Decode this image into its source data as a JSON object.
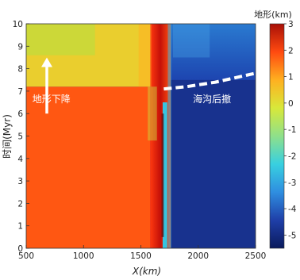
{
  "chart_data": {
    "type": "heatmap",
    "title": "",
    "xlabel": "X(km)",
    "ylabel": "时间(Myr)",
    "xlim": [
      500,
      2500
    ],
    "ylim": [
      0,
      10
    ],
    "xticks": [
      "500",
      "1000",
      "1500",
      "2000",
      "2500"
    ],
    "yticks": [
      "0",
      "1",
      "2",
      "3",
      "4",
      "5",
      "6",
      "7",
      "8",
      "9",
      "10"
    ],
    "colorbar": {
      "label": "地形(km)",
      "range": [
        -5.5,
        3
      ],
      "ticks": [
        "3",
        "2",
        "1",
        "0",
        "-1",
        "-2",
        "-3",
        "-4",
        "-5"
      ],
      "colors": [
        "#0a1a5c",
        "#1f3fa8",
        "#2f8ee0",
        "#38d0e0",
        "#8fe08a",
        "#d8e83a",
        "#ffb020",
        "#ff4a10",
        "#a81008"
      ]
    },
    "regions": [
      {
        "name": "early continental plain",
        "x": [
          500,
          1580
        ],
        "t": [
          0,
          7.2
        ],
        "topography_km": 1.8
      },
      {
        "name": "uplifted margin",
        "x": [
          1580,
          1760
        ],
        "t": [
          0,
          10
        ],
        "topography_km": 2.8
      },
      {
        "name": "trench",
        "x": [
          1690,
          1730
        ],
        "t": [
          0,
          6.5
        ],
        "topography_km": -2.5
      },
      {
        "name": "late subsided plain",
        "x": [
          500,
          1580
        ],
        "t": [
          7.2,
          10
        ],
        "topography_km": 0.3
      },
      {
        "name": "ocean basin",
        "x": [
          1760,
          2500
        ],
        "t": [
          0,
          7.5
        ],
        "topography_km": -4.8
      },
      {
        "name": "post-retreat basin",
        "x": [
          1760,
          2500
        ],
        "t": [
          7.5,
          10
        ],
        "topography_km": -3.0
      }
    ],
    "annotations": [
      {
        "text": "地形下降",
        "x": 720,
        "t": 6.5,
        "color": "#ffffff"
      },
      {
        "text": "海沟后撤",
        "x": 2120,
        "t": 6.5,
        "color": "#ffffff"
      }
    ],
    "boundary_line": {
      "style": "dashed",
      "color": "#ffffff",
      "points": [
        [
          1700,
          7.1
        ],
        [
          1900,
          7.2
        ],
        [
          2150,
          7.4
        ],
        [
          2500,
          7.8
        ]
      ]
    },
    "arrow": {
      "x": 680,
      "t_from": 6.0,
      "t_to": 8.5,
      "color": "#ffffff"
    }
  }
}
